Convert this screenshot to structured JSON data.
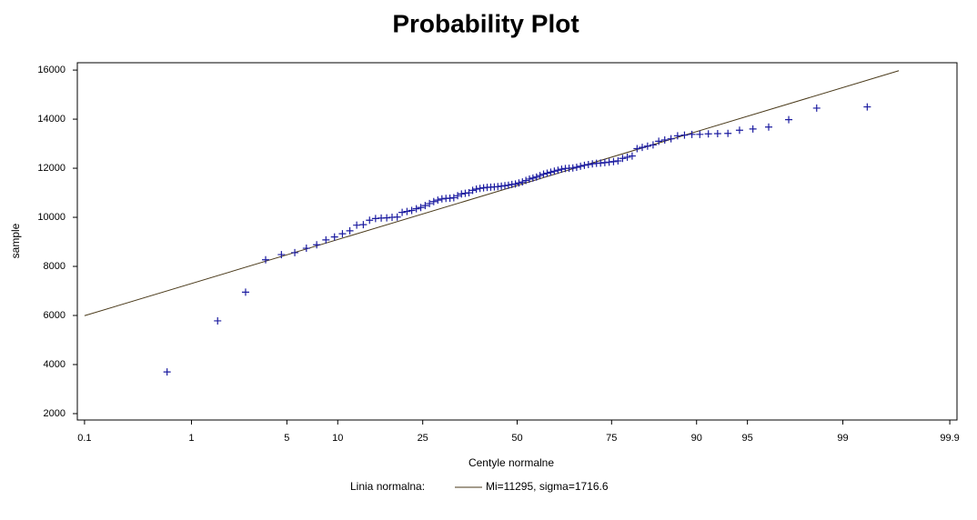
{
  "chart_data": {
    "type": "probability",
    "title": "Probability Plot",
    "x_label": "Centyle normalne",
    "y_label": "sample",
    "xscale": "normal-probability",
    "xlim": [
      0.084,
      99.916
    ],
    "xticks": [
      0.1,
      1,
      5,
      10,
      25,
      50,
      75,
      90,
      95,
      99,
      99.9
    ],
    "ylim": [
      1740,
      16300
    ],
    "yticks": [
      2000,
      4000,
      6000,
      8000,
      10000,
      12000,
      14000,
      16000
    ],
    "legend_title": "Linia normalna:",
    "points": {
      "color": "#1c1ca0",
      "x": [
        0.62,
        1.62,
        2.62,
        3.62,
        4.61,
        5.61,
        6.61,
        7.61,
        8.6,
        9.6,
        10.6,
        11.6,
        12.59,
        13.59,
        14.59,
        15.59,
        16.58,
        17.58,
        18.58,
        19.58,
        20.57,
        21.57,
        22.57,
        23.57,
        24.56,
        25.56,
        26.56,
        27.56,
        28.55,
        29.55,
        30.55,
        31.55,
        32.54,
        33.54,
        34.54,
        35.54,
        36.53,
        37.53,
        38.53,
        39.53,
        40.52,
        41.52,
        42.52,
        43.52,
        44.51,
        45.51,
        46.51,
        47.51,
        48.5,
        49.5,
        50.5,
        51.5,
        52.49,
        53.49,
        54.49,
        55.49,
        56.48,
        57.48,
        58.48,
        59.48,
        60.47,
        61.47,
        62.47,
        63.47,
        64.46,
        65.46,
        66.46,
        67.46,
        68.45,
        69.45,
        70.45,
        71.45,
        72.44,
        73.44,
        74.44,
        75.44,
        76.43,
        77.43,
        78.43,
        79.43,
        80.42,
        81.42,
        82.42,
        83.42,
        84.41,
        85.41,
        86.41,
        87.41,
        88.4,
        89.4,
        90.4,
        91.4,
        92.39,
        93.39,
        94.39,
        95.39,
        96.38,
        97.38,
        98.38,
        99.38
      ],
      "values": [
        3700,
        5780,
        6950,
        8270,
        8480,
        8560,
        8740,
        8880,
        9080,
        9200,
        9330,
        9450,
        9680,
        9700,
        9880,
        9950,
        9970,
        9980,
        10000,
        10010,
        10200,
        10240,
        10280,
        10350,
        10400,
        10480,
        10560,
        10640,
        10700,
        10750,
        10770,
        10780,
        10800,
        10880,
        10950,
        10980,
        11000,
        11100,
        11150,
        11180,
        11200,
        11220,
        11230,
        11240,
        11250,
        11270,
        11290,
        11310,
        11340,
        11360,
        11400,
        11440,
        11500,
        11560,
        11600,
        11640,
        11700,
        11760,
        11800,
        11840,
        11880,
        11920,
        11960,
        11990,
        12000,
        12010,
        12040,
        12080,
        12120,
        12150,
        12180,
        12200,
        12210,
        12230,
        12250,
        12270,
        12300,
        12400,
        12450,
        12500,
        12800,
        12850,
        12900,
        12950,
        13100,
        13150,
        13200,
        13320,
        13350,
        13380,
        13380,
        13400,
        13410,
        13420,
        13550,
        13600,
        13680,
        13980,
        14450,
        14500
      ]
    },
    "normal_line": {
      "name": "Mi=11295, sigma=1716.6",
      "color": "#4a3a1a",
      "x": [
        0.1,
        99.68
      ],
      "values": [
        5990,
        15975
      ]
    }
  }
}
